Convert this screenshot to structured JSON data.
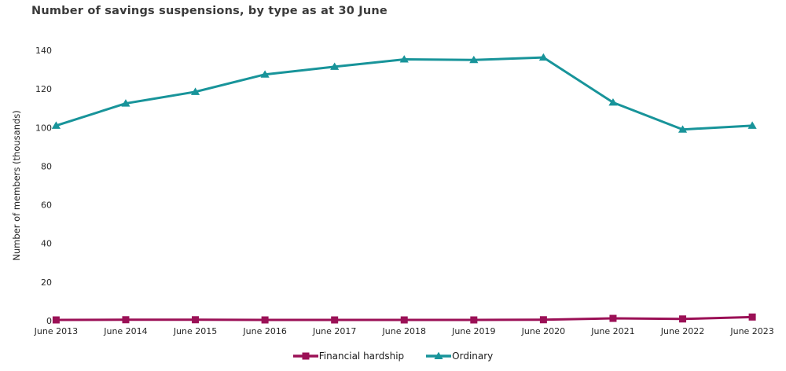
{
  "chart_data": {
    "type": "line",
    "title": "Number of savings suspensions, by type as at 30 June",
    "xlabel": "",
    "ylabel": "Number of members (thousands)",
    "categories": [
      "June 2013",
      "June 2014",
      "June 2015",
      "June 2016",
      "June 2017",
      "June 2018",
      "June 2019",
      "June 2020",
      "June 2021",
      "June 2022",
      "June 2023"
    ],
    "series": [
      {
        "name": "Financial hardship",
        "color": "#9b1056",
        "marker": "square",
        "values": [
          0.4,
          0.5,
          0.5,
          0.4,
          0.4,
          0.4,
          0.4,
          0.5,
          1.2,
          0.9,
          1.9
        ]
      },
      {
        "name": "Ordinary",
        "color": "#18949a",
        "marker": "triangle",
        "values": [
          101,
          112.5,
          118.5,
          127.5,
          131.5,
          135.3,
          135.0,
          136.3,
          113,
          99,
          101
        ]
      }
    ],
    "ylim": [
      0,
      140
    ],
    "yticks": [
      0,
      20,
      40,
      60,
      80,
      100,
      120,
      140
    ],
    "grid": false,
    "legend_position": "bottom",
    "text_color": "#262626"
  }
}
